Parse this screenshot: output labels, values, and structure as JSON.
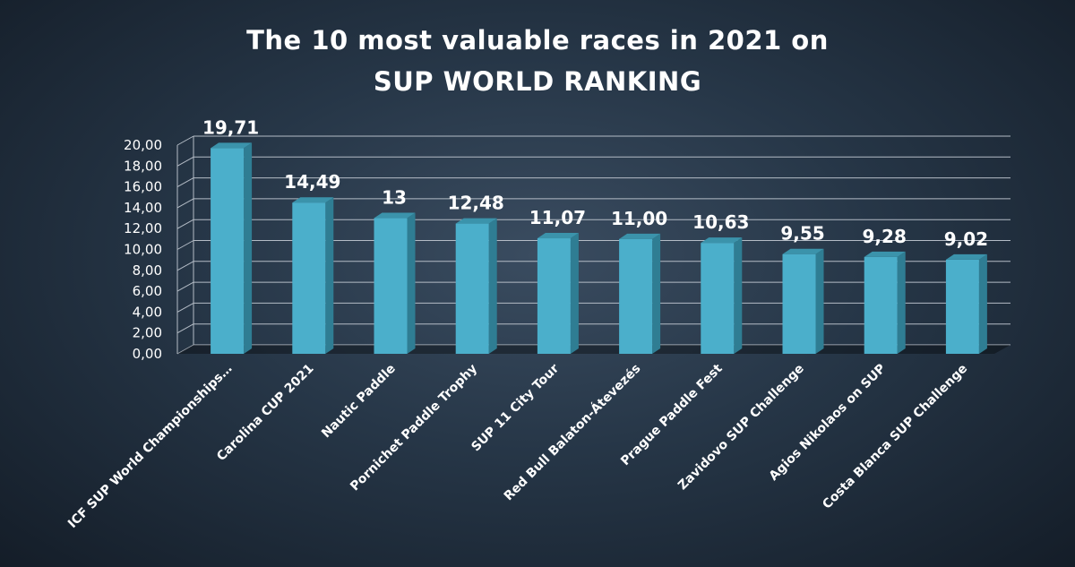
{
  "chart_data": {
    "type": "bar",
    "title_lines": [
      "The 10 most valuable races in 2021 on",
      "SUP WORLD RANKING"
    ],
    "categories": [
      "ICF SUP World Championships…",
      "Carolina CUP 2021",
      "Nautic Paddle",
      "Pornichet Paddle Trophy",
      "SUP 11 City Tour",
      "Red Bull Balaton-Átevezés",
      "Prague Paddle Fest",
      "Zavidovo SUP Challenge",
      "Agios Nikolaos on SUP",
      "Costa Blanca SUP Challenge"
    ],
    "values": [
      19.71,
      14.49,
      13,
      12.48,
      11.07,
      11.0,
      10.63,
      9.55,
      9.28,
      9.02
    ],
    "data_labels": [
      "19,71",
      "14,49",
      "13",
      "12,48",
      "11,07",
      "11,00",
      "10,63",
      "9,55",
      "9,28",
      "9,02"
    ],
    "ylim": [
      0,
      20
    ],
    "yticks": [
      "0,00",
      "2,00",
      "4,00",
      "6,00",
      "8,00",
      "10,00",
      "12,00",
      "14,00",
      "16,00",
      "18,00",
      "20,00"
    ],
    "grid": true,
    "colors": {
      "bar_front": "#4bafcb",
      "bar_side": "#2f7d93",
      "bar_top": "#3b93ab",
      "grid": "#b4bcc6"
    }
  }
}
